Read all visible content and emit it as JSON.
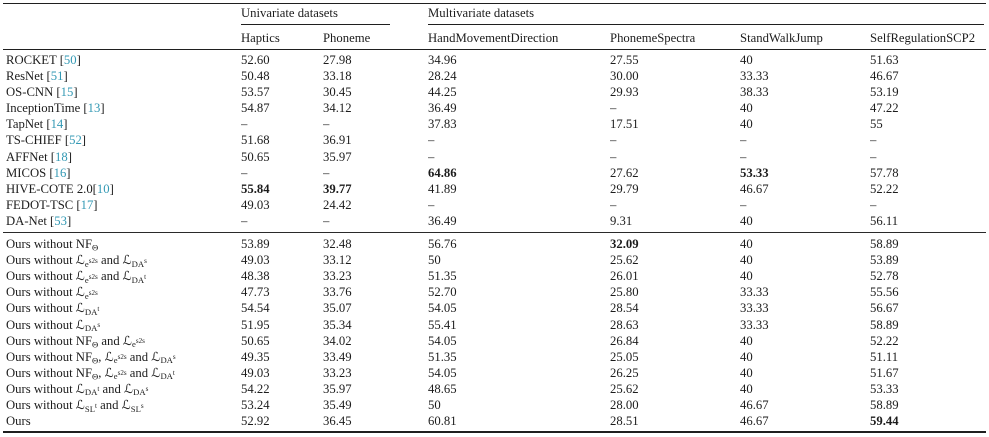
{
  "table": {
    "header": {
      "univariate_label": "Univariate datasets",
      "multivariate_label": "Multivariate datasets"
    },
    "columns": [
      "Haptics",
      "Phoneme",
      "HandMovementDirection",
      "PhonemeSpectra",
      "StandWalkJump",
      "SelfRegulationSCP2"
    ],
    "cite_color": "#3399b4",
    "missing_marker": "–",
    "groups": [
      {
        "name": "baselines",
        "rows": [
          {
            "method": "ROCKET [[50]]",
            "values": [
              "52.60",
              "27.98",
              "34.96",
              "27.55",
              "40",
              "51.63"
            ]
          },
          {
            "method": "ResNet [[51]]",
            "values": [
              "50.48",
              "33.18",
              "28.24",
              "30.00",
              "33.33",
              "46.67"
            ]
          },
          {
            "method": "OS-CNN [[15]]",
            "values": [
              "53.57",
              "30.45",
              "44.25",
              "29.93",
              "38.33",
              "53.19"
            ]
          },
          {
            "method": "InceptionTime [[13]]",
            "values": [
              "54.87",
              "34.12",
              "36.49",
              "–",
              "40",
              "47.22"
            ]
          },
          {
            "method": "TapNet [[14]]",
            "values": [
              "–",
              "–",
              "37.83",
              "17.51",
              "40",
              "55"
            ]
          },
          {
            "method": "TS-CHIEF [[52]]",
            "values": [
              "51.68",
              "36.91",
              "–",
              "–",
              "–",
              "–"
            ]
          },
          {
            "method": "AFFNet [[18]]",
            "values": [
              "50.65",
              "35.97",
              "–",
              "–",
              "–",
              "–"
            ]
          },
          {
            "method": "MICOS [[16]]",
            "values": [
              "–",
              "–",
              "**64.86**",
              "27.62",
              "**53.33**",
              "57.78"
            ]
          },
          {
            "method": "HIVE-COTE 2.0[[10]]",
            "values": [
              "**55.84**",
              "**39.77**",
              "41.89",
              "29.79",
              "46.67",
              "52.22"
            ]
          },
          {
            "method": "FEDOT-TSC [[17]]",
            "values": [
              "49.03",
              "24.42",
              "–",
              "–",
              "–",
              "–"
            ]
          },
          {
            "method": "DA-Net [[53]]",
            "values": [
              "–",
              "–",
              "36.49",
              "9.31",
              "40",
              "56.11"
            ]
          }
        ]
      },
      {
        "name": "ablations",
        "rows": [
          {
            "method": "Ours without NF_{Θ}",
            "values": [
              "53.89",
              "32.48",
              "56.76",
              "**32.09**",
              "40",
              "58.89"
            ]
          },
          {
            "method": "Ours without ℒ_{e^{s2s}} and ℒ_{DA^{s}}",
            "values": [
              "49.03",
              "33.12",
              "50",
              "25.62",
              "40",
              "53.89"
            ]
          },
          {
            "method": "Ours without ℒ_{e^{s2s}} and ℒ_{DA^{t}}",
            "values": [
              "48.38",
              "33.23",
              "51.35",
              "26.01",
              "40",
              "52.78"
            ]
          },
          {
            "method": "Ours without ℒ_{e^{s2s}}",
            "values": [
              "47.73",
              "33.76",
              "52.70",
              "25.80",
              "33.33",
              "55.56"
            ]
          },
          {
            "method": "Ours without ℒ_{DA^{t}}",
            "values": [
              "54.54",
              "35.07",
              "54.05",
              "28.54",
              "33.33",
              "56.67"
            ]
          },
          {
            "method": "Ours without ℒ_{DA^{s}}",
            "values": [
              "51.95",
              "35.34",
              "55.41",
              "28.63",
              "33.33",
              "58.89"
            ]
          },
          {
            "method": "Ours without NF_{Θ} and ℒ_{e^{s2s}}",
            "values": [
              "50.65",
              "34.02",
              "54.05",
              "26.84",
              "40",
              "52.22"
            ]
          },
          {
            "method": "Ours without NF_{Θ}, ℒ_{e^{s2s}} and ℒ_{DA^{s}}",
            "values": [
              "49.35",
              "33.49",
              "51.35",
              "25.05",
              "40",
              "51.11"
            ]
          },
          {
            "method": "Ours without NF_{Θ}, ℒ_{e^{s2s}} and ℒ_{DA^{t}}",
            "values": [
              "49.03",
              "33.23",
              "54.05",
              "26.25",
              "40",
              "51.67"
            ]
          },
          {
            "method": "Ours without ℒ_{DA^{t}} and ℒ_{DA^{s}}",
            "values": [
              "54.22",
              "35.97",
              "48.65",
              "25.62",
              "40",
              "53.33"
            ]
          },
          {
            "method": "Ours without ℒ_{SL^{t}} and ℒ_{SL^{s}}",
            "values": [
              "53.24",
              "35.49",
              "50",
              "28.00",
              "46.67",
              "58.89"
            ]
          },
          {
            "method": "Ours",
            "values": [
              "52.92",
              "36.45",
              "60.81",
              "28.51",
              "46.67",
              "**59.44**"
            ]
          }
        ]
      }
    ]
  }
}
